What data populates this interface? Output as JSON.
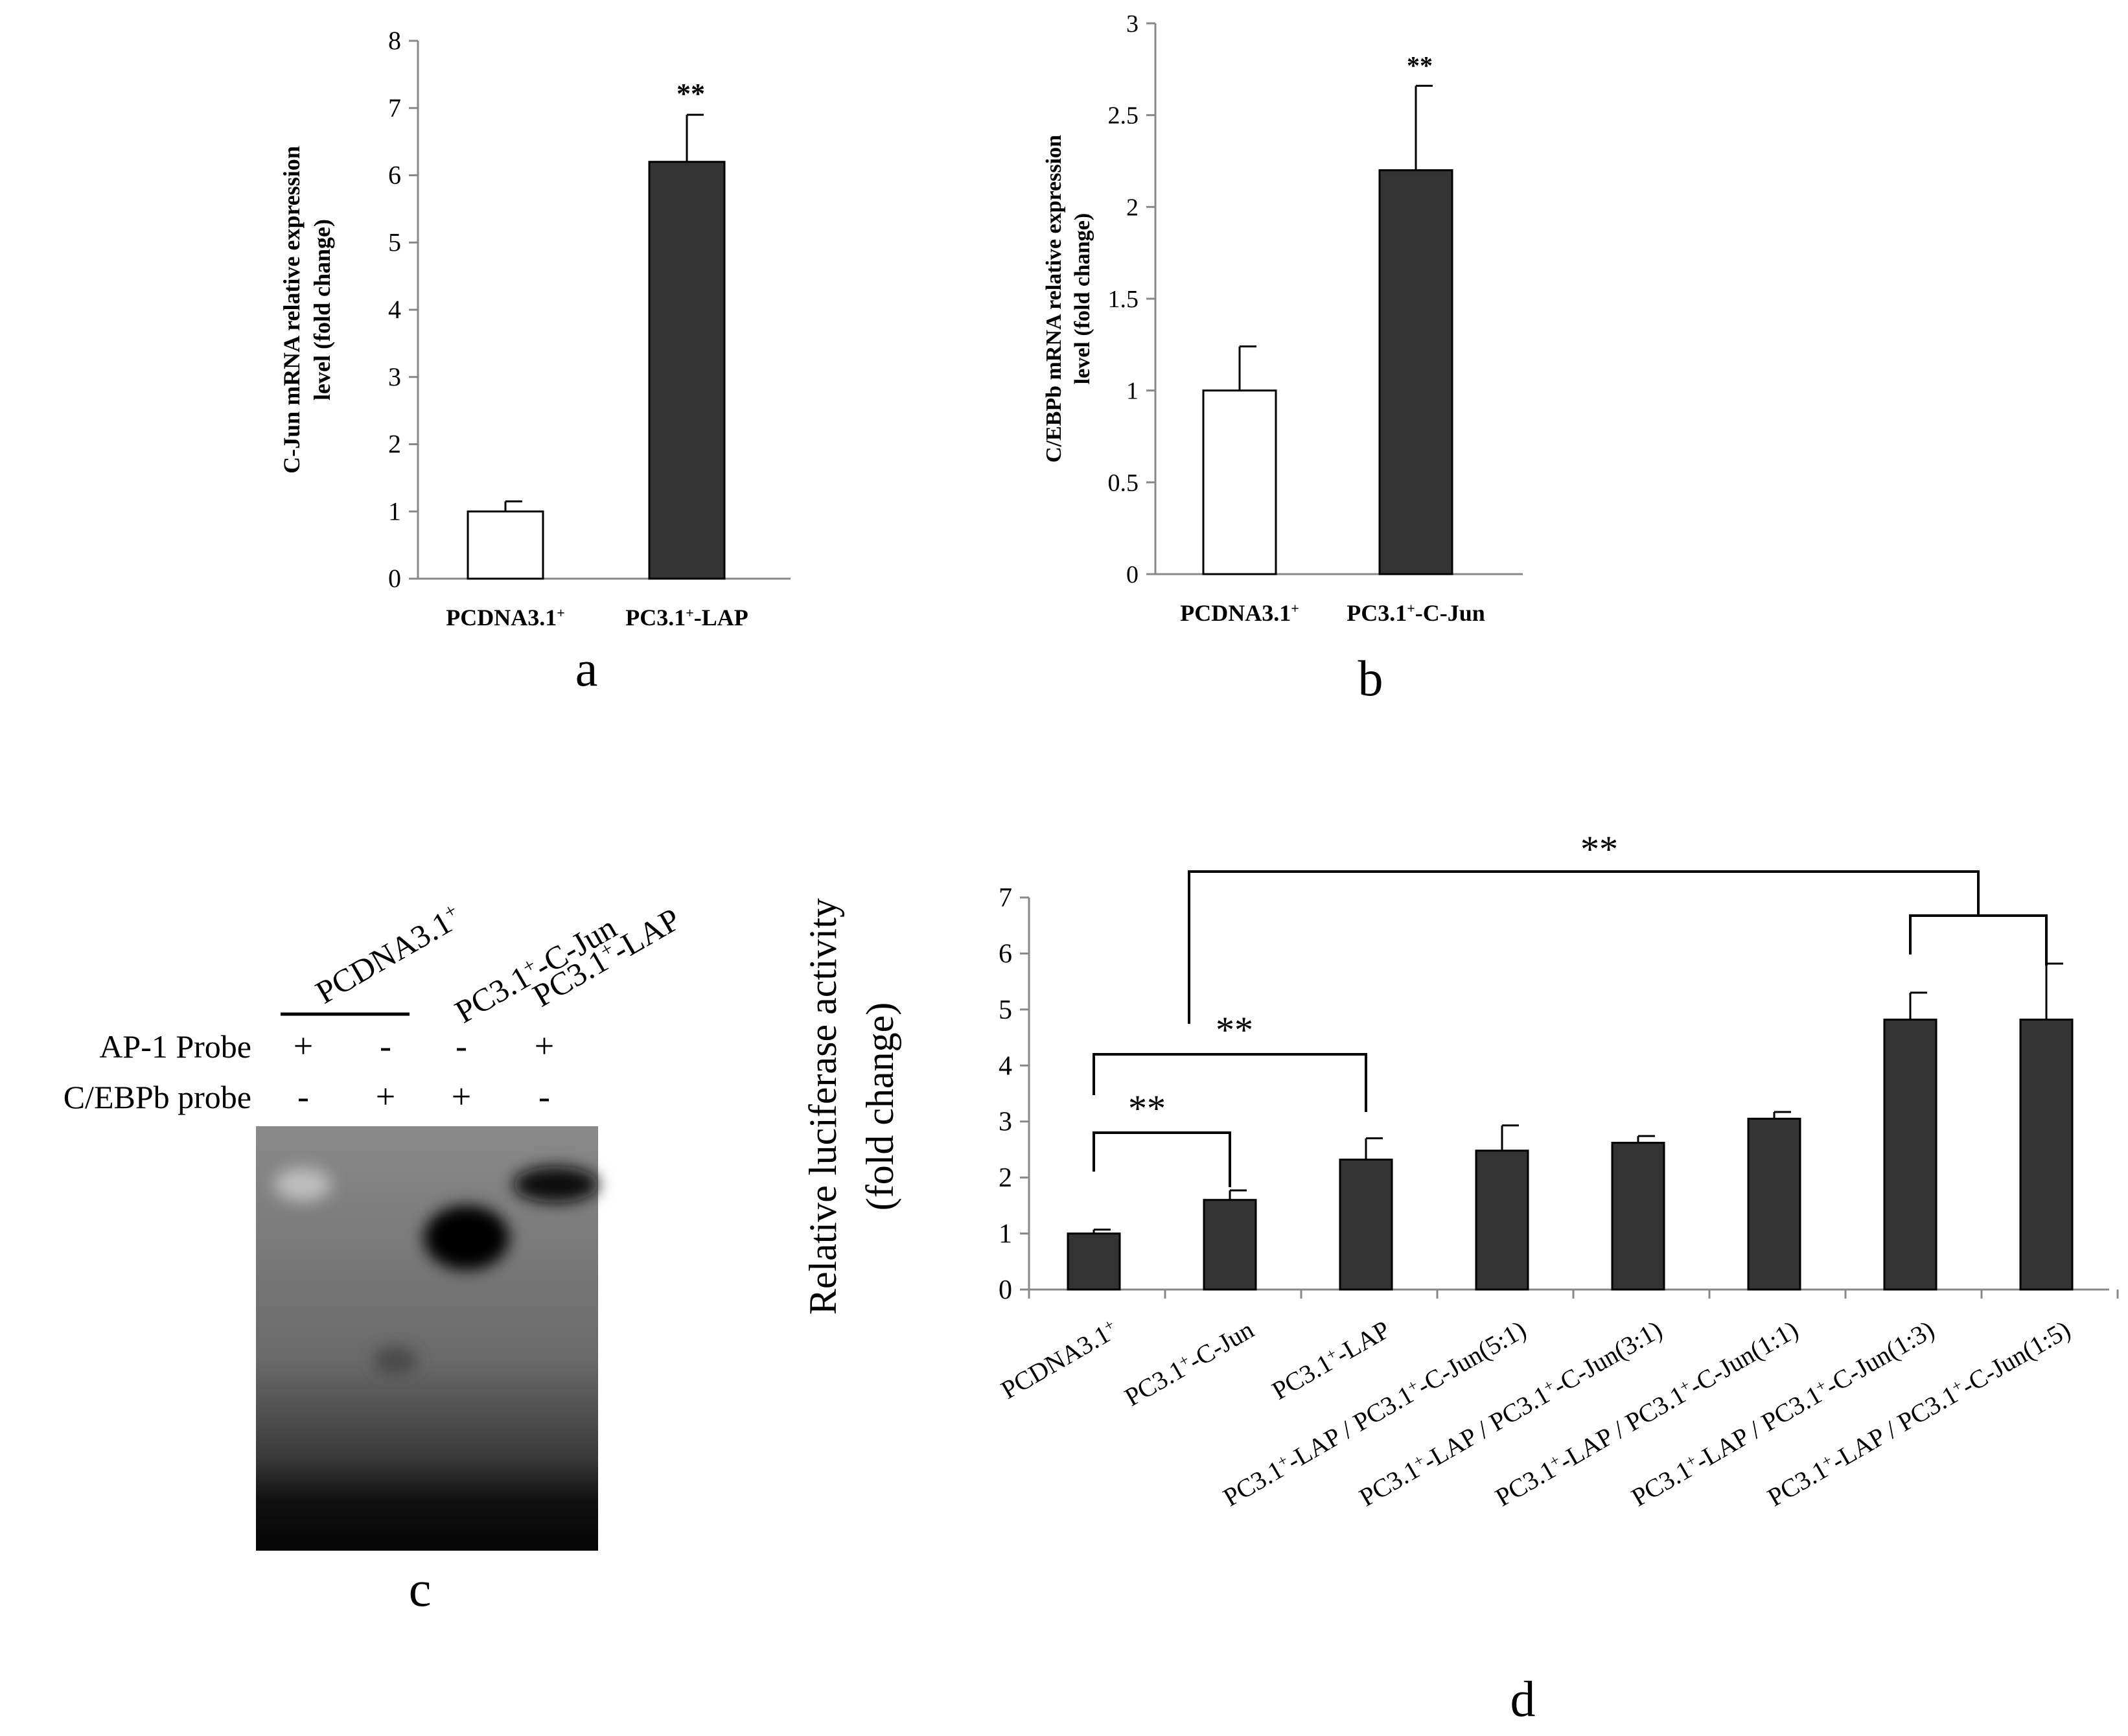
{
  "panel_letters": [
    "a",
    "b",
    "c",
    "d"
  ],
  "significance": "**",
  "colors": {
    "dark_bar": "#333333",
    "light_bar": "#ffffff",
    "axis": "#888888",
    "gel_bg": "#6f6f6f"
  },
  "chart_data": [
    {
      "panel": "a",
      "type": "bar",
      "categories": [
        {
          "base": "PCDNA3.1",
          "sup": "+",
          "rest": ""
        },
        {
          "base": "PC3.1",
          "sup": "+",
          "rest": "-LAP"
        }
      ],
      "values": [
        1.0,
        6.2
      ],
      "errors": [
        0.15,
        0.7
      ],
      "bar_colors": [
        "#ffffff",
        "#333333"
      ],
      "ylabel_lines": [
        "C-Jun mRNA relative expression",
        "level (fold change)"
      ],
      "ylim": [
        0,
        8
      ],
      "yticks": [
        "0",
        "1",
        "2",
        "3",
        "4",
        "5",
        "6",
        "7",
        "8"
      ],
      "annotations": [
        "",
        "**"
      ]
    },
    {
      "panel": "b",
      "type": "bar",
      "categories": [
        {
          "base": "PCDNA3.1",
          "sup": "+",
          "rest": ""
        },
        {
          "base": "PC3.1",
          "sup": "+",
          "rest": "-C-Jun"
        }
      ],
      "values": [
        1.0,
        2.2
      ],
      "errors": [
        0.24,
        0.46
      ],
      "bar_colors": [
        "#ffffff",
        "#333333"
      ],
      "ylabel_lines": [
        "C/EBPb mRNA relative expression",
        "level (fold change)"
      ],
      "ylim": [
        0,
        3
      ],
      "yticks": [
        "0",
        "0.5",
        "1",
        "1.5",
        "2",
        "2.5",
        "3"
      ],
      "annotations": [
        "",
        "**"
      ]
    },
    {
      "panel": "d",
      "type": "bar",
      "categories": [
        {
          "base": "PCDNA3.1",
          "sup": "+",
          "rest": ""
        },
        {
          "base": "PC3.1",
          "sup": "+",
          "rest": "-C-Jun"
        },
        {
          "base": "PC3.1",
          "sup": "+",
          "rest": "-LAP"
        },
        {
          "base": "PC3.1",
          "sup": "+",
          "rest": "-LAP / PC3.1",
          "sup2": "+",
          "rest2": "-C-Jun(5:1)"
        },
        {
          "base": "PC3.1",
          "sup": "+",
          "rest": "-LAP / PC3.1",
          "sup2": "+",
          "rest2": "-C-Jun(3:1)"
        },
        {
          "base": "PC3.1",
          "sup": "+",
          "rest": "-LAP / PC3.1",
          "sup2": "+",
          "rest2": "-C-Jun(1:1)"
        },
        {
          "base": "PC3.1",
          "sup": "+",
          "rest": "-LAP / PC3.1",
          "sup2": "+",
          "rest2": "-C-Jun(1:3)"
        },
        {
          "base": "PC3.1",
          "sup": "+",
          "rest": "-LAP / PC3.1",
          "sup2": "+",
          "rest2": "-C-Jun(1:5)"
        }
      ],
      "values": [
        1.0,
        1.6,
        2.32,
        2.48,
        2.62,
        3.05,
        4.82,
        4.82
      ],
      "errors": [
        0.07,
        0.17,
        0.38,
        0.45,
        0.12,
        0.12,
        0.48,
        1.0
      ],
      "bar_colors": [
        "#333333",
        "#333333",
        "#333333",
        "#333333",
        "#333333",
        "#333333",
        "#333333",
        "#333333"
      ],
      "ylabel_lines": [
        "Relative luciferase activity",
        "(fold change)"
      ],
      "ylim": [
        0,
        7
      ],
      "yticks": [
        "0",
        "1",
        "2",
        "3",
        "4",
        "5",
        "6",
        "7"
      ],
      "brackets": [
        {
          "from": 0,
          "to": 1,
          "label": "**"
        },
        {
          "from": 0,
          "to": 2,
          "label": "**"
        },
        {
          "from": 6,
          "to": 7,
          "label": ""
        },
        {
          "from_point": 0,
          "to_bracket": 2,
          "label": "**"
        }
      ]
    }
  ],
  "gel": {
    "panel": "c",
    "lane_labels": [
      {
        "base": "PCDNA3.1",
        "sup": "+",
        "rest": ""
      },
      {
        "base": "PC3.1",
        "sup": "+",
        "rest": "-C-Jun"
      },
      {
        "base": "PC3.1",
        "sup": "+",
        "rest": "-LAP"
      }
    ],
    "row_labels": [
      "AP-1 Probe",
      "C/EBPb probe"
    ],
    "rows": [
      [
        "+",
        "-",
        "-",
        "+"
      ],
      [
        "-",
        "+",
        "+",
        "-"
      ]
    ]
  }
}
